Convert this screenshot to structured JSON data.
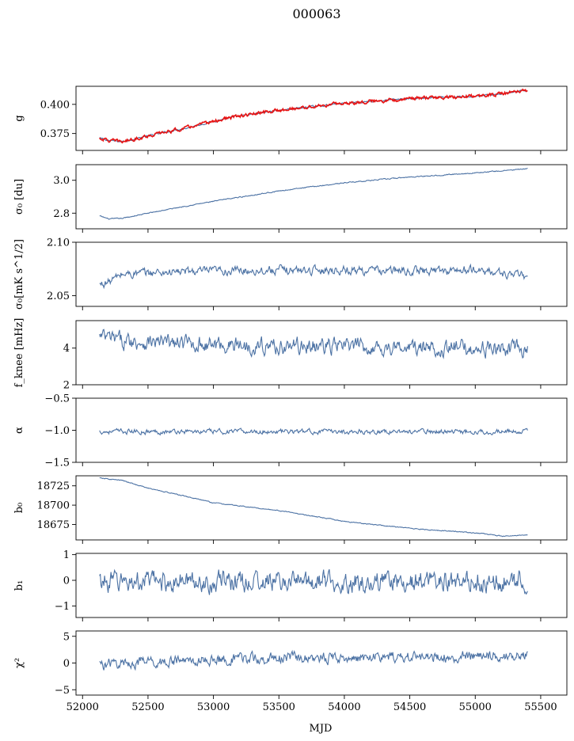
{
  "title": "000063",
  "xlabel": "MJD",
  "colors": {
    "series": "#4c72a4",
    "overlay": "#e81313",
    "axes": "#000000"
  },
  "chart_data": {
    "type": "line",
    "title": "000063",
    "xlabel": "MJD",
    "xlim": [
      51950,
      55700
    ],
    "xticks": [
      52000,
      52500,
      53000,
      53500,
      54000,
      54500,
      55000,
      55500
    ],
    "x_range": [
      52130,
      55400
    ],
    "panels": [
      {
        "id": "g",
        "ylabel": "g",
        "ylim": [
          0.3605,
          0.4155
        ],
        "yticks": [
          {
            "v": 0.375,
            "label": "0.375"
          },
          {
            "v": 0.4,
            "label": "0.400"
          }
        ],
        "series": [
          {
            "key": "g",
            "color": "#4c72a4",
            "x": [
              52130,
              52200,
              52300,
              52500,
              52800,
              53100,
              53500,
              54000,
              54500,
              55000,
              55200,
              55400
            ],
            "y": [
              0.371,
              0.369,
              0.368,
              0.373,
              0.38,
              0.388,
              0.395,
              0.401,
              0.405,
              0.407,
              0.409,
              0.412
            ],
            "noise": 0.0006
          },
          {
            "key": "g_fit",
            "color": "#e81313",
            "x": [
              52130,
              52200,
              52300,
              52500,
              52800,
              53100,
              53500,
              54000,
              54500,
              55000,
              55200,
              55400
            ],
            "y": [
              0.371,
              0.369,
              0.368,
              0.373,
              0.38,
              0.388,
              0.395,
              0.401,
              0.405,
              0.407,
              0.409,
              0.412
            ],
            "noise": 0.0012
          }
        ]
      },
      {
        "id": "sigma0",
        "ylabel": "σ₀ [du]",
        "ylim": [
          2.705,
          3.095
        ],
        "yticks": [
          {
            "v": 2.8,
            "label": "2.8"
          },
          {
            "v": 3.0,
            "label": "3.0"
          }
        ],
        "series": [
          {
            "key": "sigma0",
            "color": "#4c72a4",
            "x": [
              52130,
              52200,
              52300,
              52500,
              52800,
              53100,
              53500,
              54000,
              54500,
              55000,
              55400
            ],
            "y": [
              2.783,
              2.765,
              2.768,
              2.8,
              2.845,
              2.885,
              2.935,
              2.985,
              3.02,
              3.045,
              3.07
            ],
            "noise": 0.0025
          }
        ]
      },
      {
        "id": "sigma0_mk",
        "ylabel": "σ₀[mK s^1/2]",
        "ylim": [
          2.04,
          2.1
        ],
        "yticks": [
          {
            "v": 2.05,
            "label": "2.05"
          },
          {
            "v": 2.1,
            "label": "2.10"
          }
        ],
        "series": [
          {
            "key": "sigma0_mk",
            "color": "#4c72a4",
            "x": [
              52130,
              52200,
              52300,
              52600,
              53000,
              53500,
              54000,
              54500,
              55000,
              55400
            ],
            "y": [
              2.06,
              2.063,
              2.07,
              2.072,
              2.073,
              2.074,
              2.074,
              2.073,
              2.074,
              2.068
            ],
            "noise": 0.0032
          }
        ]
      },
      {
        "id": "fknee",
        "ylabel": "f_knee [mHz]",
        "ylim": [
          2.0,
          5.5
        ],
        "yticks": [
          {
            "v": 2,
            "label": "2"
          },
          {
            "v": 4,
            "label": "4"
          }
        ],
        "series": [
          {
            "key": "fknee",
            "color": "#4c72a4",
            "x": [
              52130,
              52300,
              52600,
              53000,
              53500,
              54000,
              54500,
              55000,
              55400
            ],
            "y": [
              4.6,
              4.4,
              4.3,
              4.2,
              4.1,
              4.1,
              4.0,
              4.0,
              3.9
            ],
            "noise": 0.35
          }
        ]
      },
      {
        "id": "alpha",
        "ylabel": "α",
        "ylim": [
          -1.5,
          -0.5
        ],
        "yticks": [
          {
            "v": -1.5,
            "label": "−1.5"
          },
          {
            "v": -1.0,
            "label": "−1.0"
          },
          {
            "v": -0.5,
            "label": "−0.5"
          }
        ],
        "series": [
          {
            "key": "alpha",
            "color": "#4c72a4",
            "x": [
              52130,
              55400
            ],
            "y": [
              -1.02,
              -1.02
            ],
            "noise": 0.03
          }
        ]
      },
      {
        "id": "b0",
        "ylabel": "b₀",
        "ylim": [
          18655,
          18738
        ],
        "yticks": [
          {
            "v": 18675,
            "label": "18675"
          },
          {
            "v": 18700,
            "label": "18700"
          },
          {
            "v": 18725,
            "label": "18725"
          }
        ],
        "series": [
          {
            "key": "b0",
            "color": "#4c72a4",
            "x": [
              52130,
              52300,
              52500,
              52800,
              53000,
              53500,
              54000,
              54500,
              55000,
              55200,
              55400
            ],
            "y": [
              18735,
              18732,
              18722,
              18711,
              18703,
              18693,
              18679,
              18670,
              18664,
              18660,
              18661
            ],
            "noise": 0.5
          }
        ]
      },
      {
        "id": "b1",
        "ylabel": "b₁",
        "ylim": [
          -1.45,
          1.05
        ],
        "yticks": [
          {
            "v": -1,
            "label": "−1"
          },
          {
            "v": 0,
            "label": "0"
          },
          {
            "v": 1,
            "label": "1"
          }
        ],
        "series": [
          {
            "key": "b1",
            "color": "#4c72a4",
            "x": [
              52130,
              55400
            ],
            "y": [
              -0.05,
              -0.05
            ],
            "noise": 0.32
          }
        ]
      },
      {
        "id": "chi2",
        "ylabel": "χ²",
        "ylim": [
          -6,
          6
        ],
        "yticks": [
          {
            "v": -5,
            "label": "−5"
          },
          {
            "v": 0,
            "label": "0"
          },
          {
            "v": 5,
            "label": "5"
          }
        ],
        "series": [
          {
            "key": "chi2",
            "color": "#4c72a4",
            "x": [
              52130,
              52500,
              53000,
              53500,
              54000,
              54500,
              55000,
              55400
            ],
            "y": [
              -0.3,
              0.2,
              0.6,
              0.9,
              1.0,
              1.1,
              1.3,
              1.5
            ],
            "noise": 0.8
          }
        ]
      }
    ]
  }
}
